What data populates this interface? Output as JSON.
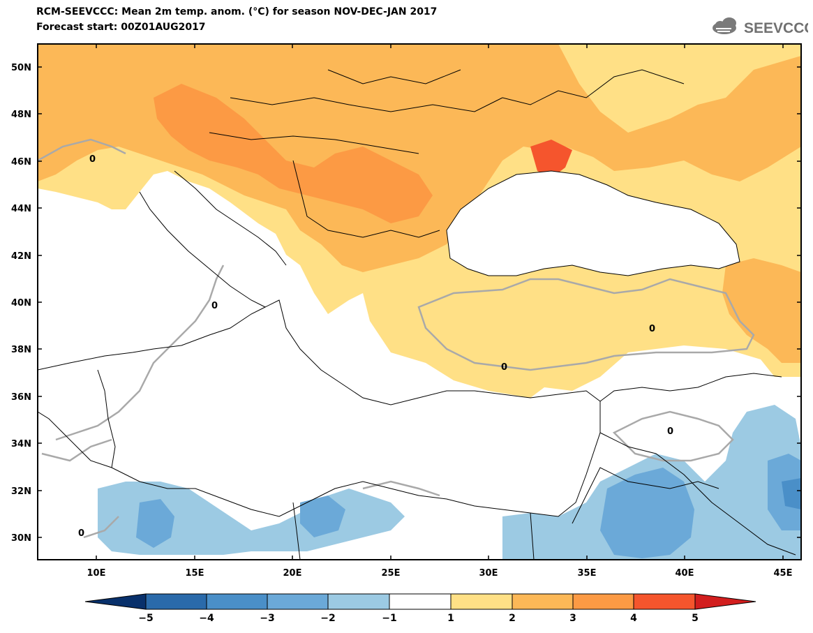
{
  "header": {
    "title": "RCM-SEEVCCC: Mean 2m temp. anom. (°C) for season NOV-DEC-JAN 2017",
    "subtitle": "Forecast start: 00Z01AUG2017",
    "logo_text": "SEEVCCC"
  },
  "map": {
    "lat_labels": [
      "50N",
      "48N",
      "46N",
      "44N",
      "42N",
      "40N",
      "38N",
      "36N",
      "34N",
      "32N",
      "30N"
    ],
    "lon_labels": [
      "10E",
      "15E",
      "20E",
      "25E",
      "30E",
      "35E",
      "40E",
      "45E"
    ],
    "contour_label": "0"
  },
  "colorbar": {
    "labels": [
      "−5",
      "−4",
      "−3",
      "−2",
      "−1",
      "1",
      "2",
      "3",
      "4",
      "5"
    ],
    "colors": [
      "#08306b",
      "#2a6aaa",
      "#4a8fc8",
      "#6ba9d8",
      "#9ccae3",
      "#ffffff",
      "#ffe086",
      "#fcb857",
      "#fc9a44",
      "#f5552d",
      "#d21e1e"
    ]
  },
  "colors": {
    "land_warm_1": "#ffe086",
    "land_warm_2": "#fcb857",
    "land_warm_3": "#fc9a44",
    "land_warm_4": "#f5552d",
    "cool_1": "#9ccae3",
    "cool_2": "#6ba9d8",
    "cool_3": "#4a8fc8",
    "contour": "#a9a9a9"
  }
}
